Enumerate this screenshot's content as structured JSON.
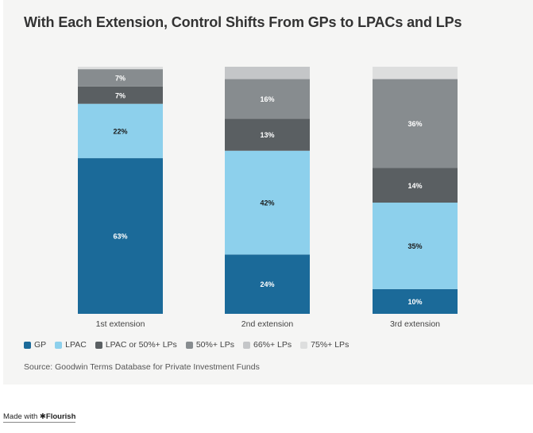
{
  "chart_data": {
    "type": "bar",
    "stacked": true,
    "normalized": true,
    "title": "With Each Extension, Control Shifts From GPs to LPACs and LPs",
    "source": "Source: Goodwin Terms Database for Private Investment Funds",
    "categories": [
      "1st extension",
      "2nd extension",
      "3rd extension"
    ],
    "series": [
      {
        "name": "GP",
        "color": "#1b6a99",
        "label_color": "#ffffff",
        "values": [
          63,
          24,
          10
        ]
      },
      {
        "name": "LPAC",
        "color": "#8dd0ec",
        "label_color": "#1a1a1a",
        "values": [
          22,
          42,
          35
        ]
      },
      {
        "name": "LPAC or 50%+ LPs",
        "color": "#5a5f62",
        "label_color": "#ffffff",
        "values": [
          7,
          13,
          14
        ]
      },
      {
        "name": "50%+ LPs",
        "color": "#878c8f",
        "label_color": "#ffffff",
        "values": [
          7,
          16,
          36
        ]
      },
      {
        "name": "66%+ LPs",
        "color": "#c4c6c8",
        "label_color": "#333333",
        "values": [
          0,
          5,
          0
        ]
      },
      {
        "name": "75%+ LPs",
        "color": "#dddede",
        "label_color": "#333333",
        "values": [
          1,
          0,
          5
        ]
      }
    ],
    "value_suffix": "%",
    "ylim": [
      0,
      100
    ],
    "legend_position": "bottom-left",
    "grid": false
  },
  "footer": {
    "made_with": "Made with",
    "brand": "Flourish"
  }
}
